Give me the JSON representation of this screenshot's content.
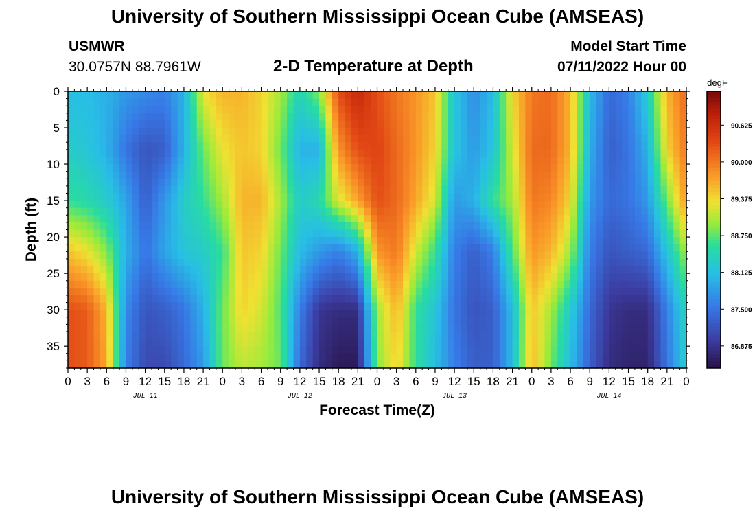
{
  "header": {
    "title": "University of Southern Mississippi Ocean Cube (AMSEAS)",
    "station": "USMWR",
    "coordinates": "30.0757N  88.7961W",
    "variable_title": "2-D Temperature at Depth",
    "model_start_label": "Model Start Time",
    "model_start_value": "07/11/2022 Hour 00"
  },
  "footer": {
    "repeated_title": "University of Southern Mississippi Ocean Cube (AMSEAS)"
  },
  "chart_data": {
    "type": "heatmap",
    "title": "2-D Temperature at Depth",
    "xlabel": "Forecast Time(Z)",
    "ylabel": "Depth (ft)",
    "x_unit": "hours since 07/11/2022 00Z",
    "xlim": [
      0,
      96
    ],
    "ylim": [
      0,
      38
    ],
    "y_inverted": true,
    "xticks": [
      0,
      3,
      6,
      9,
      12,
      15,
      18,
      21,
      24,
      27,
      30,
      33,
      36,
      39,
      42,
      45,
      48,
      51,
      54,
      57,
      60,
      63,
      66,
      69,
      72,
      75,
      78,
      81,
      84,
      87,
      90,
      93,
      96
    ],
    "xtick_labels": [
      "0",
      "3",
      "6",
      "9",
      "12",
      "15",
      "18",
      "21",
      "0",
      "3",
      "6",
      "9",
      "12",
      "15",
      "18",
      "21",
      "0",
      "3",
      "6",
      "9",
      "12",
      "15",
      "18",
      "21",
      "0",
      "3",
      "6",
      "9",
      "12",
      "15",
      "18",
      "21",
      "0"
    ],
    "yticks": [
      0,
      5,
      10,
      15,
      20,
      25,
      30,
      35
    ],
    "ytick_labels": [
      "0",
      "5",
      "10",
      "15",
      "20",
      "25",
      "30",
      "35"
    ],
    "day_labels": [
      {
        "x": 12,
        "label": "JUL 11"
      },
      {
        "x": 36,
        "label": "JUL 12"
      },
      {
        "x": 60,
        "label": "JUL 13"
      },
      {
        "x": 84,
        "label": "JUL 14"
      }
    ],
    "colorbar": {
      "unit": "degF",
      "min": 86.5,
      "max": 91.2,
      "ticks": [
        90.625,
        90.0,
        89.375,
        88.75,
        88.125,
        87.5,
        86.875
      ],
      "tick_labels": [
        "90.625",
        "90.000",
        "89.375",
        "88.750",
        "88.125",
        "87.500",
        "86.875"
      ]
    },
    "field_description": "Estimated temperature (degF) vs forecast hour and depth; values sampled from the rendered color field.",
    "profiles": [
      {
        "t": 0,
        "temps": [
          88.1,
          88.3,
          88.6,
          89.5,
          90.3,
          90.3
        ]
      },
      {
        "t": 3,
        "temps": [
          88.1,
          88.2,
          88.5,
          89.3,
          90.2,
          90.2
        ]
      },
      {
        "t": 6,
        "temps": [
          88.0,
          88.0,
          88.3,
          88.9,
          89.6,
          89.7
        ]
      },
      {
        "t": 9,
        "temps": [
          87.8,
          87.5,
          87.9,
          88.0,
          87.7,
          87.6
        ]
      },
      {
        "t": 12,
        "temps": [
          87.7,
          87.2,
          87.3,
          87.5,
          87.2,
          87.1
        ]
      },
      {
        "t": 15,
        "temps": [
          87.6,
          87.3,
          87.8,
          87.9,
          87.3,
          87.1
        ]
      },
      {
        "t": 18,
        "temps": [
          88.0,
          88.0,
          88.3,
          88.2,
          87.5,
          87.4
        ]
      },
      {
        "t": 21,
        "temps": [
          89.3,
          88.8,
          88.6,
          88.3,
          88.0,
          87.8
        ]
      },
      {
        "t": 24,
        "temps": [
          89.6,
          89.3,
          89.0,
          88.6,
          88.8,
          88.8
        ]
      },
      {
        "t": 27,
        "temps": [
          89.6,
          89.5,
          89.6,
          89.5,
          89.4,
          89.1
        ]
      },
      {
        "t": 30,
        "temps": [
          89.4,
          89.4,
          89.6,
          89.4,
          89.2,
          89.0
        ]
      },
      {
        "t": 33,
        "temps": [
          89.0,
          88.8,
          89.0,
          88.8,
          88.7,
          88.8
        ]
      },
      {
        "t": 36,
        "temps": [
          88.4,
          88.0,
          88.3,
          88.1,
          87.6,
          87.4
        ]
      },
      {
        "t": 39,
        "temps": [
          88.9,
          88.0,
          88.5,
          87.8,
          86.9,
          86.8
        ]
      },
      {
        "t": 42,
        "temps": [
          90.3,
          89.8,
          89.2,
          87.6,
          86.8,
          86.6
        ]
      },
      {
        "t": 45,
        "temps": [
          90.7,
          90.3,
          89.7,
          88.0,
          86.8,
          86.6
        ]
      },
      {
        "t": 48,
        "temps": [
          90.3,
          90.4,
          90.3,
          89.8,
          89.0,
          88.9
        ]
      },
      {
        "t": 51,
        "temps": [
          90.0,
          90.1,
          90.1,
          90.0,
          89.6,
          89.4
        ]
      },
      {
        "t": 54,
        "temps": [
          89.8,
          89.8,
          89.7,
          89.2,
          88.6,
          88.6
        ]
      },
      {
        "t": 57,
        "temps": [
          89.5,
          89.4,
          89.2,
          88.6,
          88.2,
          88.1
        ]
      },
      {
        "t": 60,
        "temps": [
          88.2,
          88.2,
          87.8,
          87.6,
          87.5,
          87.6
        ]
      },
      {
        "t": 63,
        "temps": [
          87.7,
          87.8,
          88.0,
          87.3,
          87.2,
          87.3
        ]
      },
      {
        "t": 66,
        "temps": [
          88.1,
          88.2,
          88.6,
          87.6,
          87.3,
          87.3
        ]
      },
      {
        "t": 69,
        "temps": [
          89.4,
          89.2,
          89.0,
          88.7,
          88.1,
          88.1
        ]
      },
      {
        "t": 72,
        "temps": [
          90.0,
          90.1,
          90.0,
          89.8,
          89.5,
          89.6
        ]
      },
      {
        "t": 75,
        "temps": [
          90.1,
          90.1,
          89.9,
          89.6,
          89.0,
          88.8
        ]
      },
      {
        "t": 78,
        "temps": [
          89.6,
          89.6,
          89.4,
          89.0,
          88.3,
          88.1
        ]
      },
      {
        "t": 81,
        "temps": [
          88.1,
          88.0,
          87.8,
          87.6,
          87.4,
          87.3
        ]
      },
      {
        "t": 84,
        "temps": [
          87.4,
          87.3,
          87.4,
          87.2,
          86.9,
          86.8
        ]
      },
      {
        "t": 87,
        "temps": [
          87.6,
          87.5,
          87.5,
          87.3,
          86.8,
          86.7
        ]
      },
      {
        "t": 90,
        "temps": [
          88.3,
          88.0,
          87.8,
          87.4,
          86.8,
          86.7
        ]
      },
      {
        "t": 93,
        "temps": [
          89.6,
          89.4,
          88.8,
          88.2,
          87.6,
          87.5
        ]
      },
      {
        "t": 96,
        "temps": [
          90.1,
          90.0,
          89.8,
          89.0,
          88.4,
          88.3
        ]
      }
    ],
    "profile_depths": [
      0,
      8,
      15,
      22,
      30,
      38
    ]
  }
}
